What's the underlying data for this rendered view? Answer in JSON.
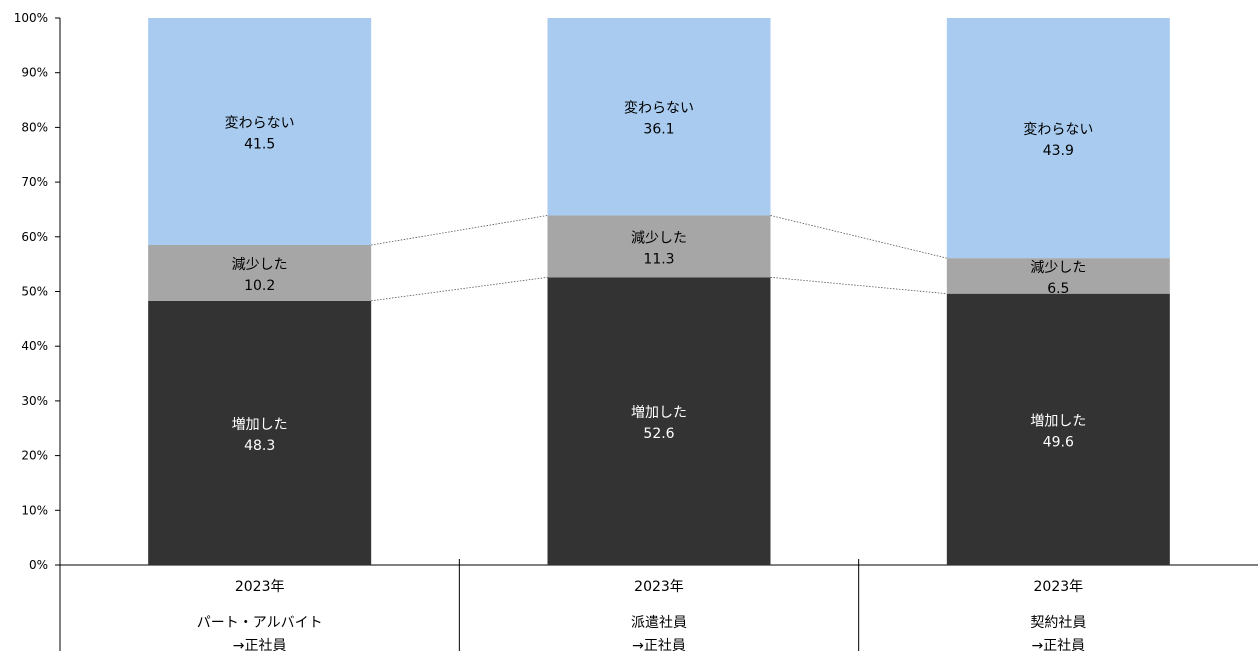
{
  "chart_data": {
    "type": "bar",
    "stacked": true,
    "percent": true,
    "ylim": [
      0,
      100
    ],
    "yticks": [
      "0%",
      "10%",
      "20%",
      "30%",
      "40%",
      "50%",
      "60%",
      "70%",
      "80%",
      "90%",
      "100%"
    ],
    "grid": false,
    "categories": [
      {
        "year": "2023年",
        "line1": "パート・アルバイト",
        "line2": "→正社員"
      },
      {
        "year": "2023年",
        "line1": "派遣社員",
        "line2": "→正社員"
      },
      {
        "year": "2023年",
        "line1": "契約社員",
        "line2": "→正社員"
      }
    ],
    "series": [
      {
        "name": "増加した",
        "values": [
          48.3,
          52.6,
          49.6
        ],
        "labels": [
          "48.3",
          "52.6",
          "49.6"
        ],
        "color": "#333333",
        "text_color": "#ffffff"
      },
      {
        "name": "減少した",
        "values": [
          10.2,
          11.3,
          6.5
        ],
        "labels": [
          "10.2",
          "11.3",
          "6.5"
        ],
        "color": "#a6a6a6",
        "text_color": "#000000"
      },
      {
        "name": "変わらない",
        "values": [
          41.5,
          36.1,
          43.9
        ],
        "labels": [
          "41.5",
          "36.1",
          "43.9"
        ],
        "color": "#a8cbef",
        "text_color": "#000000"
      }
    ],
    "connector_lines": true
  }
}
